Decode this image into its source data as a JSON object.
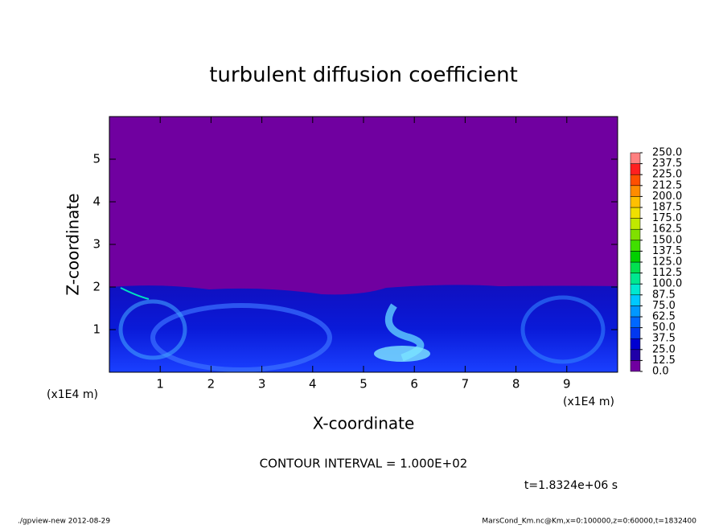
{
  "chart_data": {
    "type": "contour",
    "title": "turbulent diffusion coefficient",
    "x_label": "X-coordinate",
    "y_label": "Z-coordinate",
    "x_unit": "(x1E4 m)",
    "y_unit": "(x1E4 m)",
    "xlim": [
      0,
      10
    ],
    "xticks": [
      1,
      2,
      3,
      4,
      5,
      6,
      7,
      8,
      9
    ],
    "ylim": [
      0,
      6
    ],
    "yticks": [
      1,
      2,
      3,
      4,
      5
    ],
    "levels": [
      {
        "value": 0,
        "label": "0.0"
      },
      {
        "value": 12.5,
        "label": "12.5"
      },
      {
        "value": 25,
        "label": "25.0"
      },
      {
        "value": 37.5,
        "label": "37.5"
      },
      {
        "value": 50,
        "label": "50.0"
      },
      {
        "value": 62.5,
        "label": "62.5"
      },
      {
        "value": 75,
        "label": "75.0"
      },
      {
        "value": 87.5,
        "label": "87.5"
      },
      {
        "value": 100,
        "label": "100.0"
      },
      {
        "value": 112.5,
        "label": "112.5"
      },
      {
        "value": 125,
        "label": "125.0"
      },
      {
        "value": 137.5,
        "label": "137.5"
      },
      {
        "value": 150,
        "label": "150.0"
      },
      {
        "value": 162.5,
        "label": "162.5"
      },
      {
        "value": 175,
        "label": "175.0"
      },
      {
        "value": 187.5,
        "label": "187.5"
      },
      {
        "value": 200,
        "label": "200.0"
      },
      {
        "value": 212.5,
        "label": "212.5"
      },
      {
        "value": 225,
        "label": "225.0"
      },
      {
        "value": 237.5,
        "label": "237.5"
      },
      {
        "value": 250,
        "label": "250.0"
      }
    ],
    "level_colors": [
      "#7000a0",
      "#2000a8",
      "#0000d0",
      "#0038f0",
      "#0068ff",
      "#0098ff",
      "#00c8ff",
      "#00e8d0",
      "#00e890",
      "#00e050",
      "#00d000",
      "#40e000",
      "#80e000",
      "#c0e800",
      "#f0e000",
      "#ffc000",
      "#ff8c00",
      "#ff5000",
      "#ff2020",
      "#ff8080"
    ],
    "contour_interval": "CONTOUR INTERVAL = 1.000E+02",
    "time_label": "t=1.8324e+06 s",
    "footer_left": "./gpview-new  2012-08-29",
    "footer_right": "MarsCond_Km.nc@Km,x=0:100000,z=0:60000,t=1832400"
  }
}
